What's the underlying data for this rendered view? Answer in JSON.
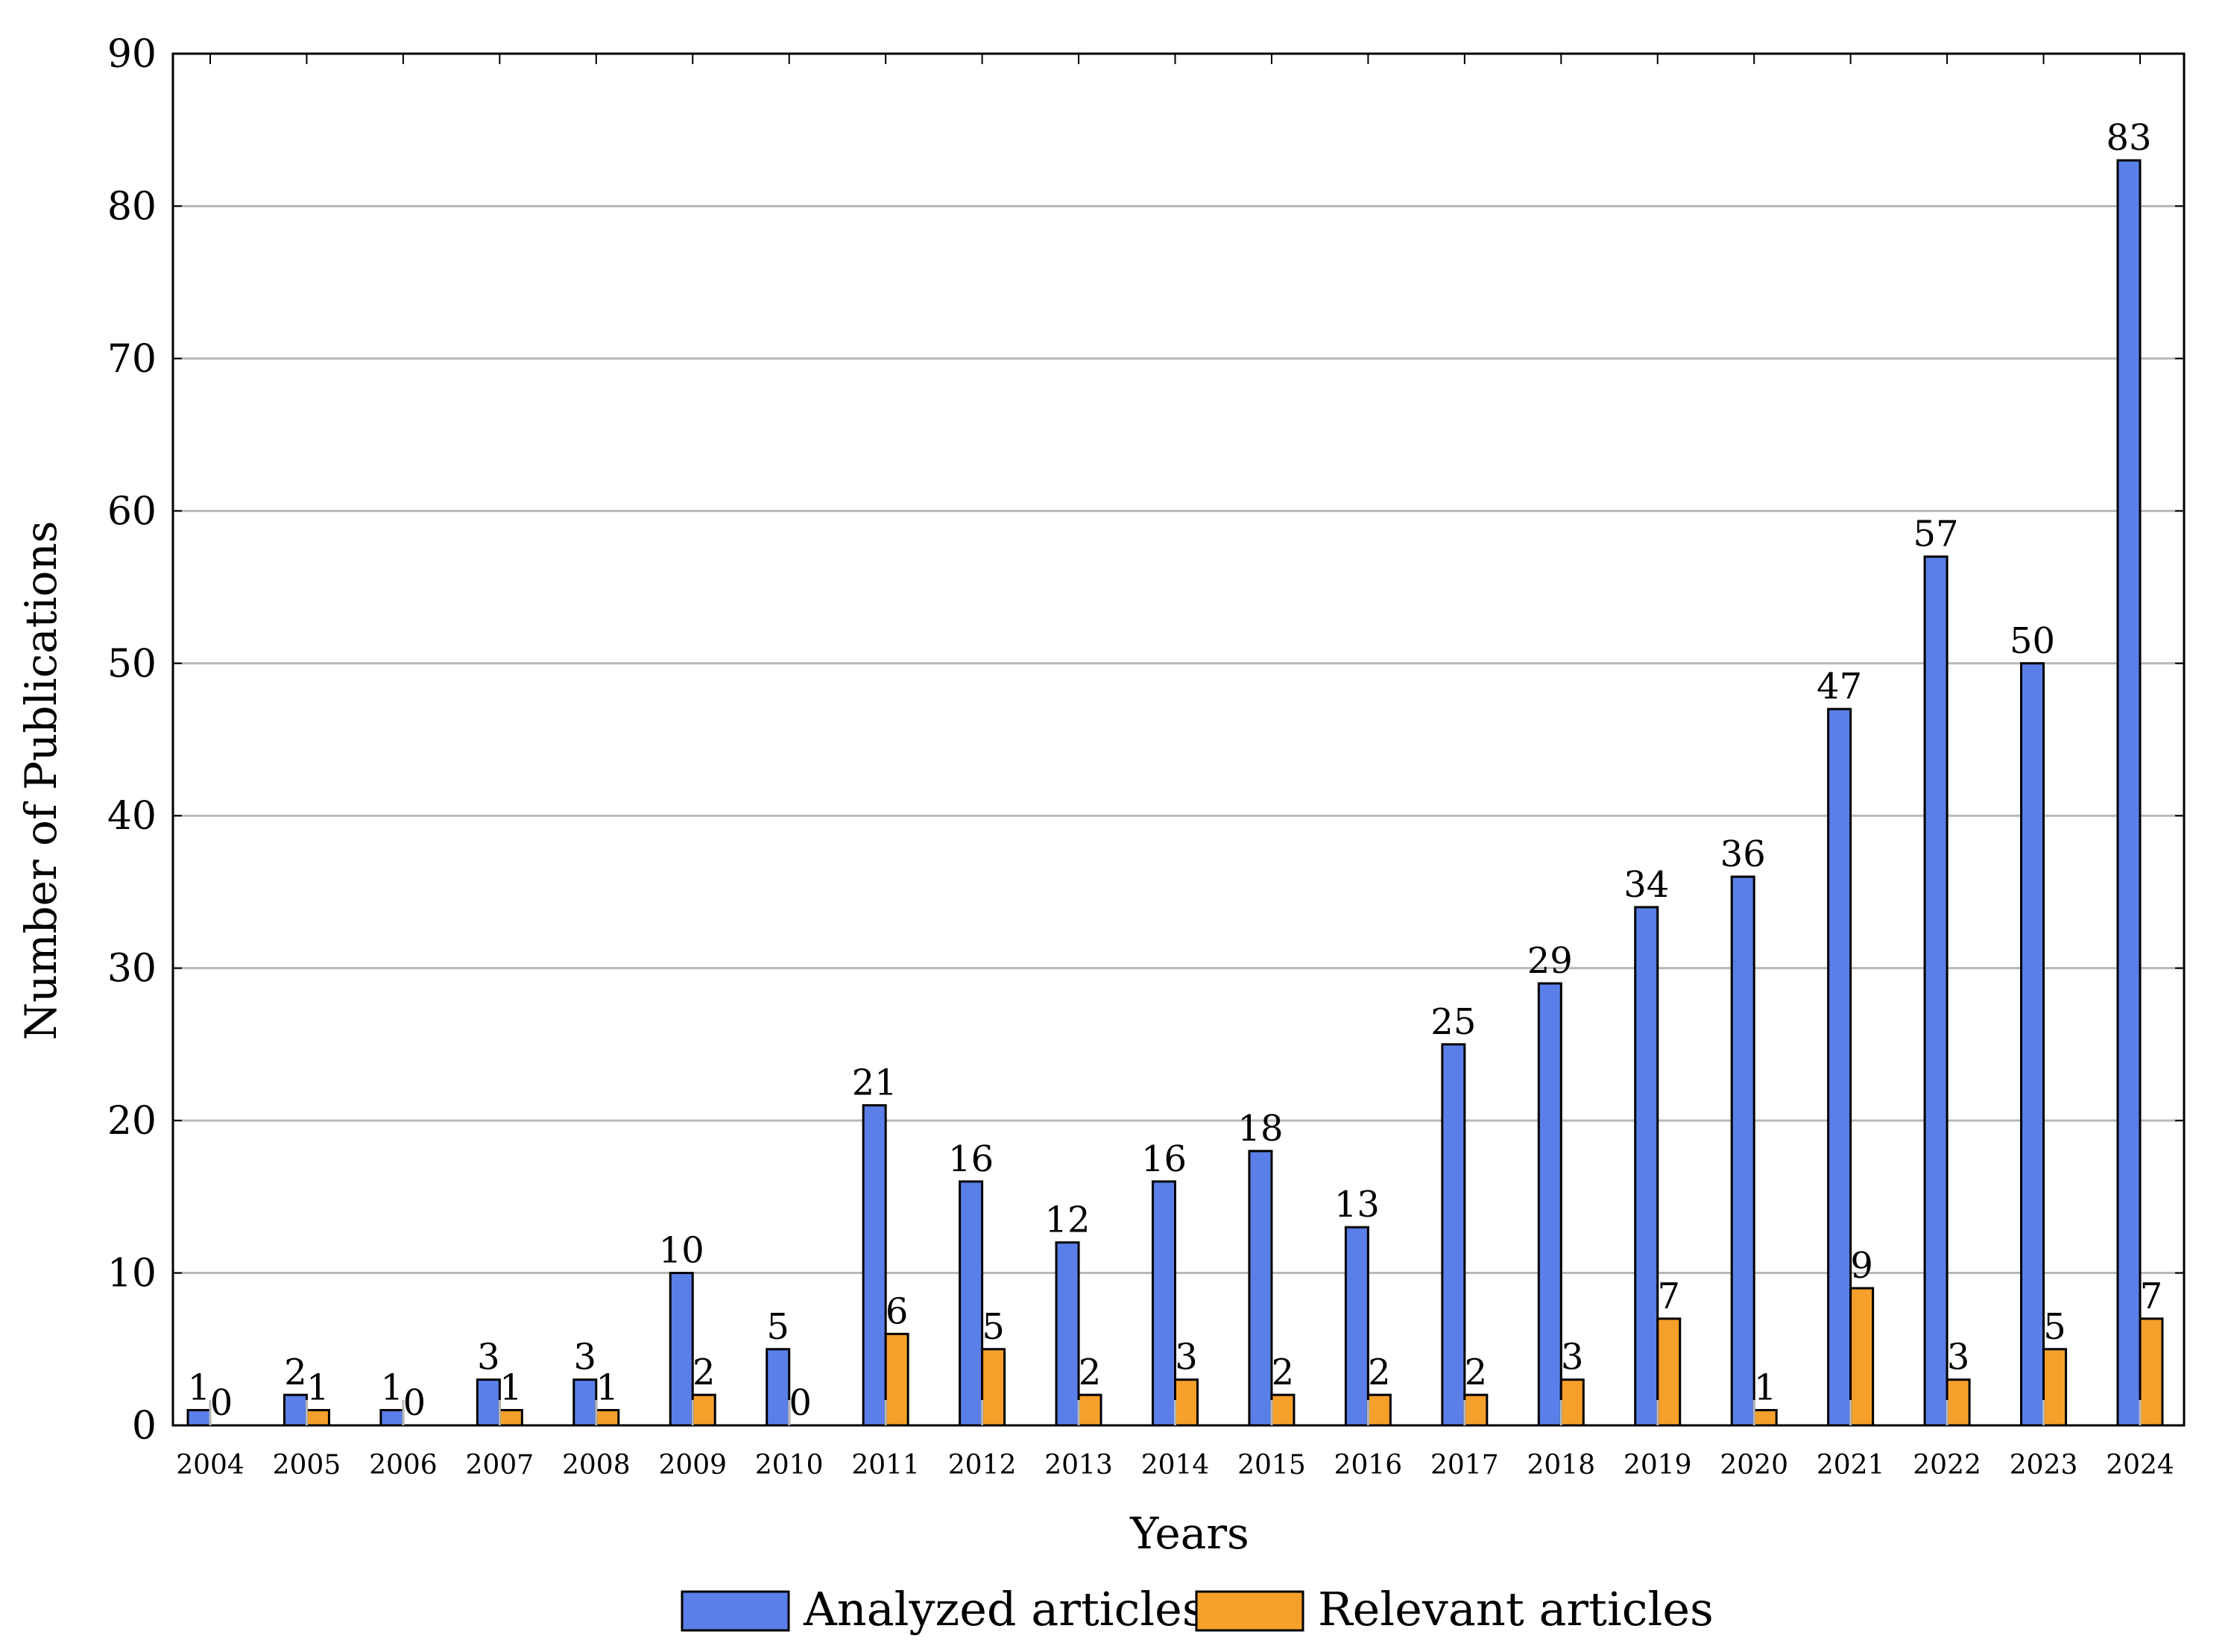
{
  "chart_data": {
    "type": "bar",
    "xlabel": "Years",
    "ylabel": "Number of Publications",
    "ylim": [
      0,
      90
    ],
    "yticks": [
      0,
      10,
      20,
      30,
      40,
      50,
      60,
      70,
      80,
      90
    ],
    "grid": "horizontal major",
    "legend_position": "bottom-center",
    "categories": [
      "2004",
      "2005",
      "2006",
      "2007",
      "2008",
      "2009",
      "2010",
      "2011",
      "2012",
      "2013",
      "2014",
      "2015",
      "2016",
      "2017",
      "2018",
      "2019",
      "2020",
      "2021",
      "2022",
      "2023",
      "2024"
    ],
    "series": [
      {
        "name": "Analyzed articles",
        "color": "#5b7fe8",
        "values": [
          1,
          2,
          1,
          3,
          3,
          10,
          5,
          21,
          16,
          12,
          16,
          18,
          13,
          25,
          29,
          34,
          36,
          47,
          57,
          50,
          83
        ]
      },
      {
        "name": "Relevant articles",
        "color": "#f5a02a",
        "values": [
          0,
          1,
          0,
          1,
          1,
          2,
          0,
          6,
          5,
          2,
          3,
          2,
          2,
          2,
          3,
          7,
          1,
          9,
          3,
          5,
          7
        ]
      }
    ]
  }
}
